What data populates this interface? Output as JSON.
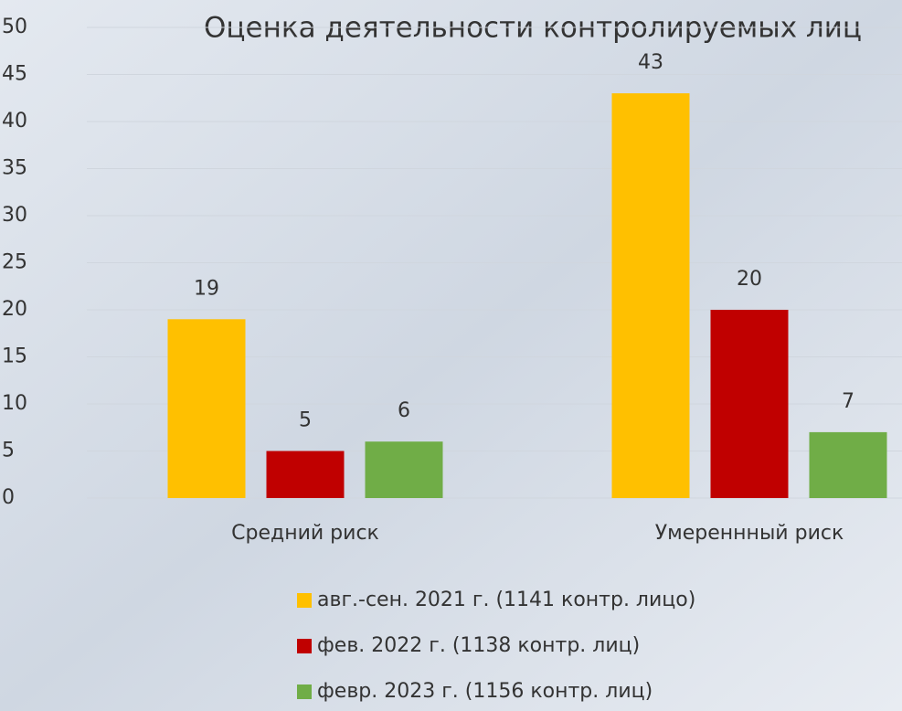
{
  "chart_data": {
    "type": "bar",
    "title": "Оценка деятельности контролируемых лиц",
    "categories": [
      "Средний риск",
      "Умереннный риск"
    ],
    "series": [
      {
        "name": "авг.-сен. 2021 г. (1141 контр. лицо)",
        "color": "#FFC000",
        "values": [
          19,
          43
        ]
      },
      {
        "name": "фев. 2022 г. (1138 контр. лиц)",
        "color": "#C00000",
        "values": [
          5,
          20
        ]
      },
      {
        "name": "февр. 2023 г. (1156 контр. лиц)",
        "color": "#70AD47",
        "values": [
          6,
          7
        ]
      }
    ],
    "ylim": [
      0,
      50
    ],
    "yticks": [
      0,
      5,
      10,
      15,
      20,
      25,
      30,
      35,
      40,
      45,
      50
    ],
    "grid": true,
    "legend": "bottom"
  }
}
